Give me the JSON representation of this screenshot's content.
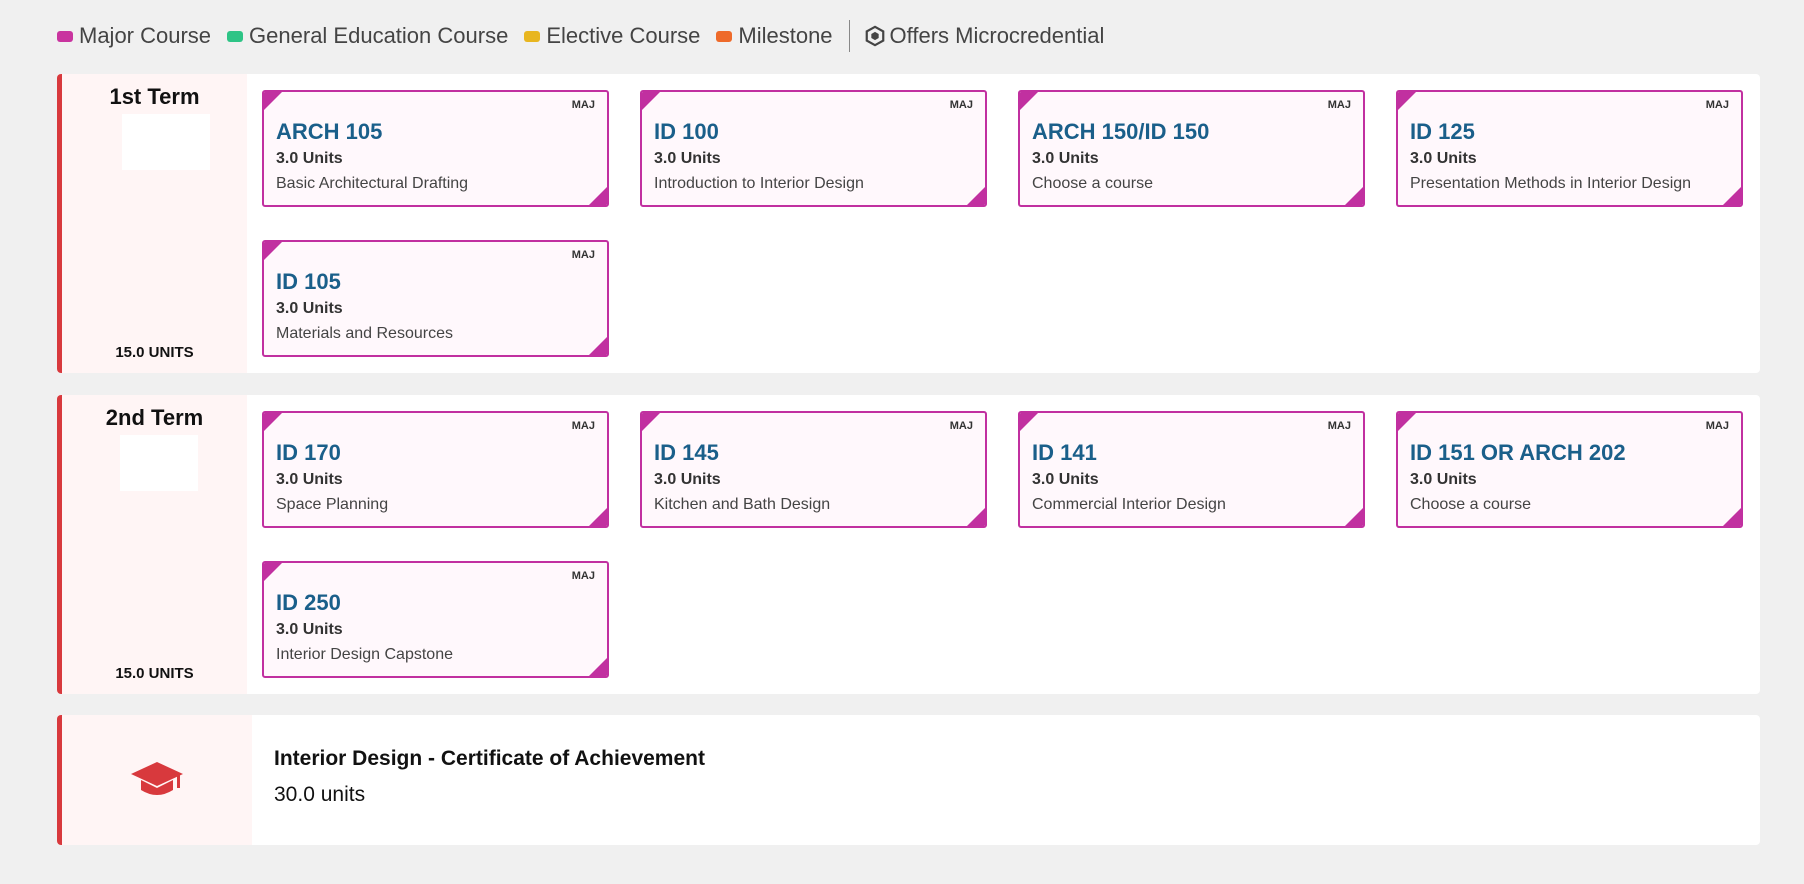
{
  "legend": {
    "items": [
      {
        "label": "Major Course",
        "color": "#c9349f"
      },
      {
        "label": "General Education Course",
        "color": "#2ec486"
      },
      {
        "label": "Elective Course",
        "color": "#e8b620"
      },
      {
        "label": "Milestone",
        "color": "#ee6a2a"
      }
    ],
    "microcredential": "Offers Microcredential"
  },
  "terms": [
    {
      "title": "1st Term",
      "units": "15.0 UNITS",
      "courses": [
        {
          "tag": "MAJ",
          "code": "ARCH 105",
          "units": "3.0 Units",
          "name": "Basic Architectural Drafting"
        },
        {
          "tag": "MAJ",
          "code": "ID 100",
          "units": "3.0 Units",
          "name": "Introduction to Interior Design"
        },
        {
          "tag": "MAJ",
          "code": "ARCH 150/ID 150",
          "units": "3.0 Units",
          "name": "Choose a course"
        },
        {
          "tag": "MAJ",
          "code": "ID 125",
          "units": "3.0 Units",
          "name": "Presentation Methods in Interior Design"
        },
        {
          "tag": "MAJ",
          "code": "ID 105",
          "units": "3.0 Units",
          "name": "Materials and Resources"
        }
      ]
    },
    {
      "title": "2nd Term",
      "units": "15.0 UNITS",
      "courses": [
        {
          "tag": "MAJ",
          "code": "ID 170",
          "units": "3.0 Units",
          "name": "Space Planning"
        },
        {
          "tag": "MAJ",
          "code": "ID 145",
          "units": "3.0 Units",
          "name": "Kitchen and Bath Design"
        },
        {
          "tag": "MAJ",
          "code": "ID 141",
          "units": "3.0 Units",
          "name": "Commercial Interior Design"
        },
        {
          "tag": "MAJ",
          "code": "ID 151 OR ARCH 202",
          "units": "3.0 Units",
          "name": "Choose a course"
        },
        {
          "tag": "MAJ",
          "code": "ID 250",
          "units": "3.0 Units",
          "name": "Interior Design Capstone"
        }
      ]
    }
  ],
  "certificate": {
    "title": "Interior Design - Certificate of Achievement",
    "units": "30.0 units",
    "icon": "graduation-cap-icon"
  }
}
